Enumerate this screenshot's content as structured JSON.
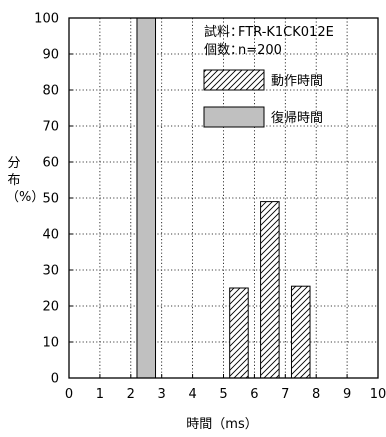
{
  "chart_data": {
    "type": "bar",
    "title": "",
    "xlabel": "時間（ms）",
    "ylabel": [
      "分",
      "布",
      "（%）"
    ],
    "xlim": [
      0,
      10
    ],
    "ylim": [
      0,
      100
    ],
    "x_ticks": [
      0,
      1,
      2,
      3,
      4,
      5,
      6,
      7,
      8,
      9,
      10
    ],
    "y_ticks": [
      0,
      10,
      20,
      30,
      40,
      50,
      60,
      70,
      80,
      90,
      100
    ],
    "grid": true,
    "bin_width": 0.6,
    "series": [
      {
        "name": "動作時間",
        "style": "hatched",
        "bins": [
          {
            "x": 5.5,
            "value": 25
          },
          {
            "x": 6.5,
            "value": 49
          },
          {
            "x": 7.5,
            "value": 25.5
          }
        ]
      },
      {
        "name": "復帰時間",
        "style": "solid",
        "color": "#c0c0c0",
        "bins": [
          {
            "x": 2.5,
            "value": 100
          }
        ]
      }
    ],
    "annotations": [
      {
        "label": "試料：",
        "value": "FTR-K1CK012E"
      },
      {
        "label": "個数：",
        "value": "n=200"
      }
    ]
  }
}
